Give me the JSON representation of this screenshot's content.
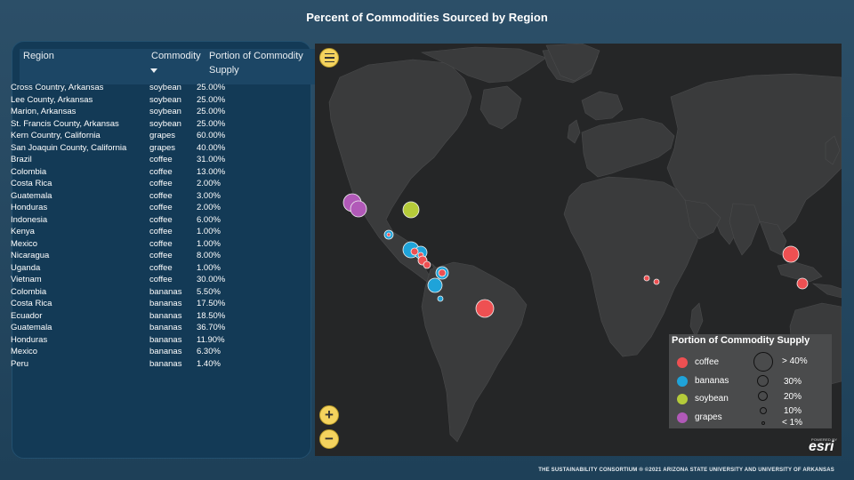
{
  "title": "Percent of Commodities Sourced by Region",
  "table": {
    "headers": {
      "region": "Region",
      "commodity": "Commodity",
      "portion": "Portion of Commodity Supply"
    },
    "rows": [
      {
        "region": "Cross Country, Arkansas",
        "commodity": "soybean",
        "portion": "25.00%"
      },
      {
        "region": "Lee County, Arkansas",
        "commodity": "soybean",
        "portion": "25.00%"
      },
      {
        "region": "Marion, Arkansas",
        "commodity": "soybean",
        "portion": "25.00%"
      },
      {
        "region": "St. Francis County, Arkansas",
        "commodity": "soybean",
        "portion": "25.00%"
      },
      {
        "region": "Kern Country, California",
        "commodity": "grapes",
        "portion": "60.00%"
      },
      {
        "region": "San Joaquin County, California",
        "commodity": "grapes",
        "portion": "40.00%"
      },
      {
        "region": "Brazil",
        "commodity": "coffee",
        "portion": "31.00%"
      },
      {
        "region": "Colombia",
        "commodity": "coffee",
        "portion": "13.00%"
      },
      {
        "region": "Costa Rica",
        "commodity": "coffee",
        "portion": "2.00%"
      },
      {
        "region": "Guatemala",
        "commodity": "coffee",
        "portion": "3.00%"
      },
      {
        "region": "Honduras",
        "commodity": "coffee",
        "portion": "2.00%"
      },
      {
        "region": "Indonesia",
        "commodity": "coffee",
        "portion": "6.00%"
      },
      {
        "region": "Kenya",
        "commodity": "coffee",
        "portion": "1.00%"
      },
      {
        "region": "Mexico",
        "commodity": "coffee",
        "portion": "1.00%"
      },
      {
        "region": "Nicaragua",
        "commodity": "coffee",
        "portion": "8.00%"
      },
      {
        "region": "Uganda",
        "commodity": "coffee",
        "portion": "1.00%"
      },
      {
        "region": "Vietnam",
        "commodity": "coffee",
        "portion": "30.00%"
      },
      {
        "region": "Colombia",
        "commodity": "bananas",
        "portion": "5.50%"
      },
      {
        "region": "Costa Rica",
        "commodity": "bananas",
        "portion": "17.50%"
      },
      {
        "region": "Ecuador",
        "commodity": "bananas",
        "portion": "18.50%"
      },
      {
        "region": "Guatemala",
        "commodity": "bananas",
        "portion": "36.70%"
      },
      {
        "region": "Honduras",
        "commodity": "bananas",
        "portion": "11.90%"
      },
      {
        "region": "Mexico",
        "commodity": "bananas",
        "portion": "6.30%"
      },
      {
        "region": "Peru",
        "commodity": "bananas",
        "portion": "1.40%"
      }
    ]
  },
  "colors": {
    "coffee": "#ee5052",
    "bananas": "#1fa3d9",
    "soybean": "#b5cb3a",
    "grapes": "#b159b8"
  },
  "map": {
    "menu_icon": "menu-icon",
    "zoom_in_label": "+",
    "zoom_out_label": "−",
    "legend": {
      "title": "Portion of Commodity Supply",
      "items": [
        "coffee",
        "bananas",
        "soybean",
        "grapes"
      ],
      "sizes": [
        "> 40%",
        "30%",
        "20%",
        "10%",
        "< 1%"
      ]
    },
    "esri_powered": "POWERED BY",
    "esri_label": "esri"
  },
  "footer": "THE SUSTAINABILITY CONSORTIUM ®  ©2021 ARIZONA STATE UNIVERSITY AND UNIVERSITY OF ARKANSAS"
}
